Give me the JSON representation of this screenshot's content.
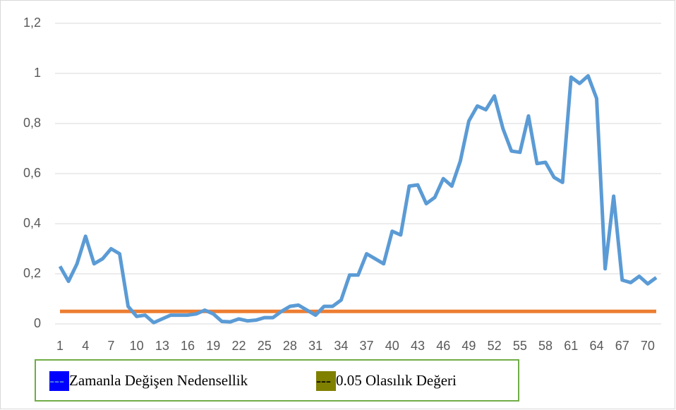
{
  "chart_data": {
    "type": "line",
    "categories": [
      1,
      null,
      null,
      4,
      null,
      null,
      7,
      null,
      null,
      10,
      null,
      null,
      13,
      null,
      null,
      16,
      null,
      null,
      19,
      null,
      null,
      22,
      null,
      null,
      25,
      null,
      null,
      28,
      null,
      null,
      31,
      null,
      null,
      34,
      null,
      null,
      37,
      null,
      null,
      40,
      null,
      null,
      43,
      null,
      null,
      46,
      null,
      null,
      49,
      null,
      null,
      52,
      null,
      null,
      55,
      null,
      null,
      58,
      null,
      null,
      61,
      null,
      null,
      64,
      null,
      null,
      67,
      null,
      null,
      70,
      null
    ],
    "series": [
      {
        "name": "Zamanla Değişen Nedensellik",
        "color": "#5b9bd5",
        "legend_color": "#0000ff",
        "values": [
          0.23,
          0.17,
          0.24,
          0.35,
          0.24,
          0.26,
          0.3,
          0.28,
          0.07,
          0.03,
          0.035,
          0.005,
          0.02,
          0.035,
          0.035,
          0.035,
          0.04,
          0.055,
          0.04,
          0.01,
          0.008,
          0.02,
          0.012,
          0.015,
          0.025,
          0.025,
          0.05,
          0.07,
          0.075,
          0.055,
          0.035,
          0.07,
          0.07,
          0.095,
          0.195,
          0.195,
          0.28,
          0.26,
          0.24,
          0.37,
          0.355,
          0.55,
          0.555,
          0.48,
          0.505,
          0.58,
          0.55,
          0.65,
          0.81,
          0.87,
          0.855,
          0.91,
          0.78,
          0.69,
          0.685,
          0.83,
          0.64,
          0.645,
          0.585,
          0.565,
          0.985,
          0.96,
          0.99,
          0.9,
          0.22,
          0.51,
          0.175,
          0.165,
          0.19,
          0.16,
          0.185
        ]
      },
      {
        "name": "0.05 Olasılık Değeri",
        "color": "#ed7d31",
        "legend_color": "#7f7f00",
        "values": [
          0.05,
          0.05,
          0.05,
          0.05,
          0.05,
          0.05,
          0.05,
          0.05,
          0.05,
          0.05,
          0.05,
          0.05,
          0.05,
          0.05,
          0.05,
          0.05,
          0.05,
          0.05,
          0.05,
          0.05,
          0.05,
          0.05,
          0.05,
          0.05,
          0.05,
          0.05,
          0.05,
          0.05,
          0.05,
          0.05,
          0.05,
          0.05,
          0.05,
          0.05,
          0.05,
          0.05,
          0.05,
          0.05,
          0.05,
          0.05,
          0.05,
          0.05,
          0.05,
          0.05,
          0.05,
          0.05,
          0.05,
          0.05,
          0.05,
          0.05,
          0.05,
          0.05,
          0.05,
          0.05,
          0.05,
          0.05,
          0.05,
          0.05,
          0.05,
          0.05,
          0.05,
          0.05,
          0.05,
          0.05,
          0.05,
          0.05,
          0.05,
          0.05,
          0.05,
          0.05,
          0.05
        ]
      }
    ],
    "legend_symbol": "---",
    "ylim": [
      0,
      1.2
    ],
    "yticks": [
      0,
      {
        "value": 0.2,
        "label": "0,2"
      },
      {
        "value": 0.4,
        "label": "0,4"
      },
      {
        "value": 0.6,
        "label": "0,6"
      },
      {
        "value": 0.8,
        "label": "0,8"
      },
      1,
      {
        "value": 1.2,
        "label": "1,2"
      }
    ],
    "grid": true
  }
}
